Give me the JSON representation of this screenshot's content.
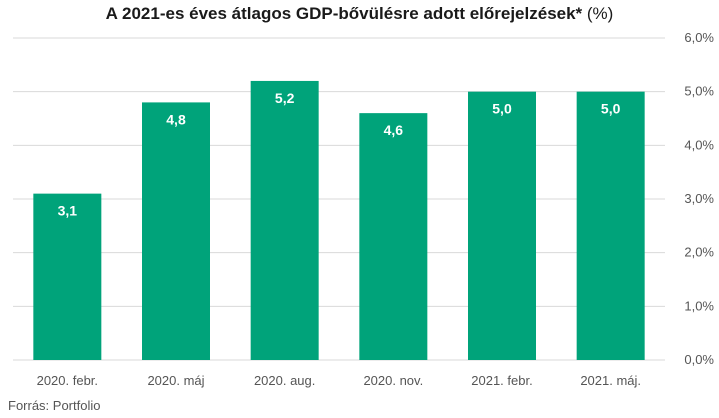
{
  "chart_data": {
    "type": "bar",
    "title": "A 2021-es éves átlagos GDP-bővülésre adott előrejelzések*",
    "title_unit": " (%)",
    "categories": [
      "2020. febr.",
      "2020. máj",
      "2020. aug.",
      "2020. nov.",
      "2021. febr.",
      "2021. máj."
    ],
    "values": [
      3.1,
      4.8,
      5.2,
      4.6,
      5.0,
      5.0
    ],
    "value_labels": [
      "3,1",
      "4,8",
      "5,2",
      "4,6",
      "5,0",
      "5,0"
    ],
    "ylim": [
      0,
      6
    ],
    "yticks": [
      "0,0%",
      "1,0%",
      "2,0%",
      "3,0%",
      "4,0%",
      "5,0%",
      "6,0%"
    ],
    "y_axis_side": "right",
    "grid": true,
    "legend": "none",
    "bar_color": "#00a37a",
    "source": "Forrás: Portfolio"
  }
}
